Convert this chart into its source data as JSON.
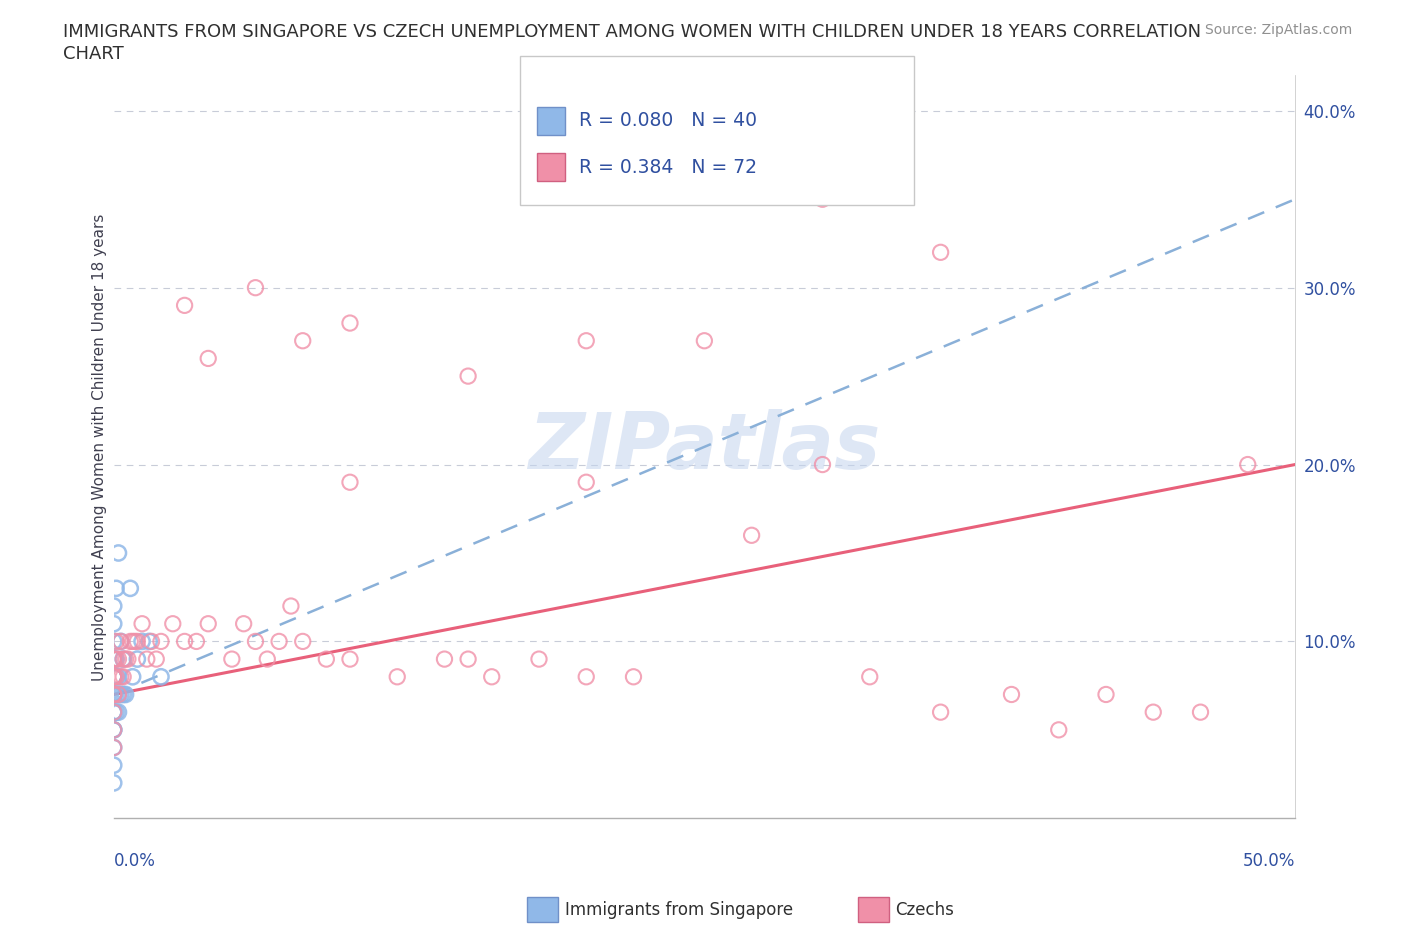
{
  "title_line1": "IMMIGRANTS FROM SINGAPORE VS CZECH UNEMPLOYMENT AMONG WOMEN WITH CHILDREN UNDER 18 YEARS CORRELATION",
  "title_line2": "CHART",
  "source": "Source: ZipAtlas.com",
  "ylabel": "Unemployment Among Women with Children Under 18 years",
  "xlim": [
    0.0,
    0.5
  ],
  "ylim": [
    0.0,
    0.42
  ],
  "yticks": [
    0.0,
    0.1,
    0.2,
    0.3,
    0.4
  ],
  "ytick_labels": [
    "",
    "10.0%",
    "20.0%",
    "30.0%",
    "40.0%"
  ],
  "watermark": "ZIPatlas",
  "color_singapore": "#90b8e8",
  "color_czech": "#f090a8",
  "color_singapore_line": "#8ab0d8",
  "color_czech_line": "#e8607a",
  "color_blue_text": "#3050a0",
  "sg_x": [
    0.0,
    0.0,
    0.0,
    0.0,
    0.0,
    0.0,
    0.0,
    0.0,
    0.0,
    0.0,
    0.0,
    0.0,
    0.0,
    0.0,
    0.0,
    0.0,
    0.0,
    0.0,
    0.0,
    0.0,
    0.001,
    0.001,
    0.001,
    0.001,
    0.001,
    0.002,
    0.002,
    0.002,
    0.002,
    0.003,
    0.003,
    0.004,
    0.004,
    0.005,
    0.007,
    0.008,
    0.01,
    0.012,
    0.015,
    0.02
  ],
  "sg_y": [
    0.02,
    0.03,
    0.04,
    0.05,
    0.05,
    0.06,
    0.06,
    0.07,
    0.07,
    0.07,
    0.07,
    0.08,
    0.08,
    0.08,
    0.09,
    0.09,
    0.09,
    0.1,
    0.11,
    0.12,
    0.06,
    0.07,
    0.08,
    0.09,
    0.13,
    0.06,
    0.07,
    0.08,
    0.15,
    0.07,
    0.1,
    0.07,
    0.09,
    0.07,
    0.13,
    0.08,
    0.09,
    0.1,
    0.1,
    0.08
  ],
  "cz_x": [
    0.0,
    0.0,
    0.0,
    0.0,
    0.0,
    0.0,
    0.0,
    0.0,
    0.0,
    0.0,
    0.001,
    0.001,
    0.001,
    0.002,
    0.002,
    0.003,
    0.003,
    0.004,
    0.004,
    0.005,
    0.006,
    0.007,
    0.008,
    0.009,
    0.01,
    0.012,
    0.014,
    0.016,
    0.018,
    0.02,
    0.025,
    0.03,
    0.035,
    0.04,
    0.05,
    0.055,
    0.06,
    0.065,
    0.07,
    0.075,
    0.08,
    0.09,
    0.1,
    0.12,
    0.14,
    0.15,
    0.16,
    0.18,
    0.2,
    0.22,
    0.25,
    0.27,
    0.3,
    0.32,
    0.35,
    0.38,
    0.4,
    0.42,
    0.44,
    0.46,
    0.03,
    0.04,
    0.06,
    0.08,
    0.1,
    0.15,
    0.2,
    0.1,
    0.2,
    0.3,
    0.35,
    0.48
  ],
  "cz_y": [
    0.04,
    0.05,
    0.06,
    0.07,
    0.07,
    0.08,
    0.08,
    0.08,
    0.09,
    0.09,
    0.08,
    0.09,
    0.1,
    0.07,
    0.09,
    0.08,
    0.1,
    0.08,
    0.09,
    0.09,
    0.09,
    0.1,
    0.1,
    0.1,
    0.1,
    0.11,
    0.09,
    0.1,
    0.09,
    0.1,
    0.11,
    0.1,
    0.1,
    0.11,
    0.09,
    0.11,
    0.1,
    0.09,
    0.1,
    0.12,
    0.1,
    0.09,
    0.09,
    0.08,
    0.09,
    0.09,
    0.08,
    0.09,
    0.08,
    0.08,
    0.27,
    0.16,
    0.2,
    0.08,
    0.06,
    0.07,
    0.05,
    0.07,
    0.06,
    0.06,
    0.29,
    0.26,
    0.3,
    0.27,
    0.28,
    0.25,
    0.27,
    0.19,
    0.19,
    0.35,
    0.32,
    0.2
  ]
}
